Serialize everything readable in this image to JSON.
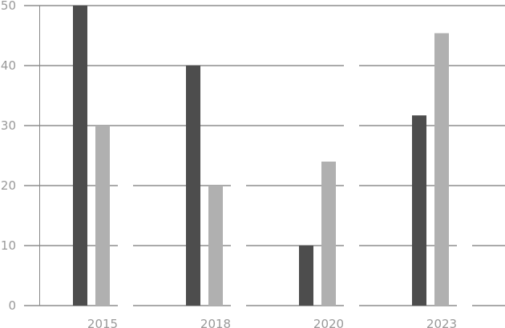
{
  "chart_data": {
    "type": "bar",
    "title": "",
    "xlabel": "",
    "ylabel": "",
    "categories": [
      "2015",
      "2018",
      "2020",
      "2023"
    ],
    "series": [
      {
        "values": [
          50,
          40,
          10,
          31.7
        ],
        "color": "#4d4d4d"
      },
      {
        "values": [
          30,
          20,
          24,
          45.4
        ],
        "color": "#b0b0b0"
      }
    ],
    "ylim": [
      0,
      50
    ],
    "yticks": [
      0,
      10,
      20,
      30,
      40,
      50
    ],
    "grid": true,
    "legend": "none",
    "colors": {
      "grid": "#555555",
      "tick_label": "#999999",
      "axis": "#888888"
    }
  }
}
